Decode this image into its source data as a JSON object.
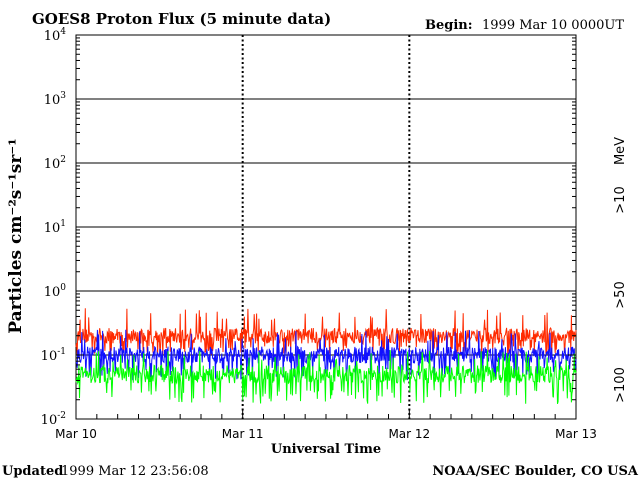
{
  "chart_data": {
    "type": "line",
    "title": "GOES8 Proton Flux (5 minute data)",
    "begin_label": "Begin:",
    "begin_value": "1999 Mar 10 0000UT",
    "xlabel": "Universal Time",
    "ylabel": "Particles cm⁻²s⁻¹sr⁻¹",
    "y_scale": "log",
    "ylim": [
      0.01,
      10000
    ],
    "y_ticks": [
      {
        "base": "10",
        "exp": "4",
        "value": 10000
      },
      {
        "base": "10",
        "exp": "3",
        "value": 1000
      },
      {
        "base": "10",
        "exp": "2",
        "value": 100
      },
      {
        "base": "10",
        "exp": "1",
        "value": 10
      },
      {
        "base": "10",
        "exp": "0",
        "value": 1
      },
      {
        "base": "10",
        "exp": "-1",
        "value": 0.1
      },
      {
        "base": "10",
        "exp": "-2",
        "value": 0.01
      }
    ],
    "x_ticks": [
      "Mar 10",
      "Mar 11",
      "Mar 12",
      "Mar 13"
    ],
    "xlim_days": [
      0,
      3
    ],
    "legend_placement": "right",
    "legend_unit": "MeV",
    "series": [
      {
        "name": ">10",
        "color": "#ff2a00",
        "typical": 0.2,
        "max": 0.55,
        "min": 0.1
      },
      {
        "name": ">50",
        "color": "#1010ff",
        "typical": 0.1,
        "max": 0.25,
        "min": 0.04
      },
      {
        "name": ">100",
        "color": "#00ff00",
        "typical": 0.05,
        "max": 0.12,
        "min": 0.017
      }
    ]
  },
  "footer": {
    "updated_label": "Updated",
    "updated_value": "1999 Mar 12 23:56:08",
    "credit": "NOAA/SEC Boulder, CO USA"
  }
}
